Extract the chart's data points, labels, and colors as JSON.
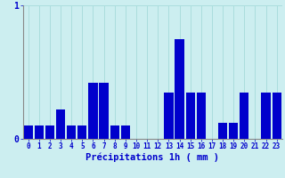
{
  "xlabel": "Précipitations 1h ( mm )",
  "values": [
    0.1,
    0.1,
    0.1,
    0.22,
    0.1,
    0.1,
    0.42,
    0.42,
    0.1,
    0.1,
    0.0,
    0.0,
    0.0,
    0.35,
    0.75,
    0.35,
    0.35,
    0.0,
    0.12,
    0.12,
    0.35,
    0.0,
    0.35,
    0.35
  ],
  "bar_color": "#0000cc",
  "background_color": "#cceef0",
  "grid_color": "#aadddd",
  "axis_color": "#888888",
  "text_color": "#0000cc",
  "ylim": [
    0,
    1.0
  ],
  "yticks": [
    0,
    1
  ],
  "yticklabels": [
    "0",
    "1"
  ],
  "xlim": [
    -0.5,
    23.5
  ],
  "bar_width": 0.85
}
